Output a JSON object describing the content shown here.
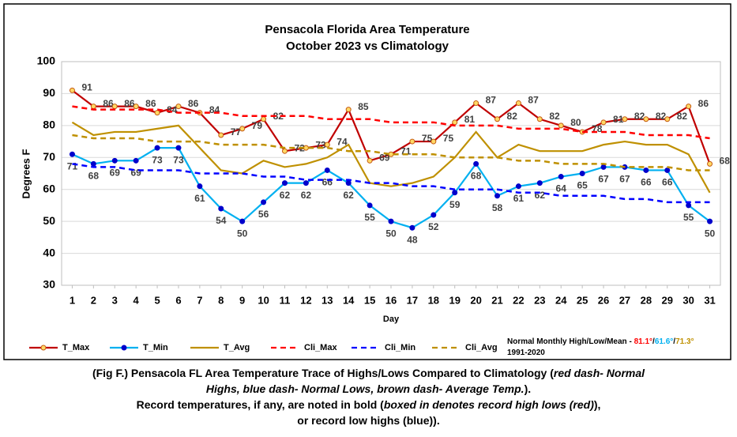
{
  "chart_data": {
    "type": "line",
    "title": [
      "Pensacola Florida Area Temperature",
      "October 2023 vs Climatology"
    ],
    "ylabel": "Degrees F",
    "xlabel": "Day",
    "x": [
      1,
      2,
      3,
      4,
      5,
      6,
      7,
      8,
      9,
      10,
      11,
      12,
      13,
      14,
      15,
      16,
      17,
      18,
      19,
      20,
      21,
      22,
      23,
      24,
      25,
      26,
      27,
      28,
      29,
      30,
      31
    ],
    "xlim": [
      0.5,
      31.5
    ],
    "xticks": [
      1,
      2,
      3,
      4,
      5,
      6,
      7,
      8,
      9,
      10,
      11,
      12,
      13,
      14,
      15,
      16,
      17,
      18,
      19,
      20,
      21,
      22,
      23,
      24,
      25,
      26,
      27,
      28,
      29,
      30,
      31
    ],
    "ylim": [
      30,
      100
    ],
    "yticks": [
      30,
      40,
      50,
      60,
      70,
      80,
      90,
      100
    ],
    "grid": true,
    "legend": "bottom",
    "series": [
      {
        "name": "T_Max",
        "color": "#c00000",
        "dash": false,
        "marker_color": "#ffd966",
        "marker_edge": "#c55a11",
        "labels": "above",
        "values": [
          91,
          86,
          86,
          86,
          84,
          86,
          84,
          77,
          79,
          82,
          72,
          73,
          74,
          85,
          69,
          71,
          75,
          75,
          81,
          87,
          82,
          87,
          82,
          80,
          78,
          81,
          82,
          82,
          82,
          86,
          68
        ]
      },
      {
        "name": "T_Min",
        "color": "#00b0f0",
        "dash": false,
        "marker_color": "#0000cc",
        "marker_edge": "#0000cc",
        "labels": "below",
        "values": [
          71,
          68,
          69,
          69,
          73,
          73,
          61,
          54,
          50,
          56,
          62,
          62,
          66,
          62,
          55,
          50,
          48,
          52,
          59,
          68,
          58,
          61,
          62,
          64,
          65,
          67,
          67,
          66,
          66,
          55,
          50
        ]
      },
      {
        "name": "T_Avg",
        "color": "#bf9000",
        "dash": false,
        "values": [
          81,
          77,
          78,
          78,
          79,
          80,
          73,
          66,
          65,
          69,
          67,
          68,
          70,
          74,
          62,
          61,
          62,
          64,
          70,
          78,
          70,
          74,
          72,
          72,
          72,
          74,
          75,
          74,
          74,
          71,
          59
        ]
      },
      {
        "name": "Cli_Max",
        "color": "#ff0000",
        "dash": true,
        "values": [
          86,
          85,
          85,
          85,
          85,
          84,
          84,
          84,
          83,
          83,
          83,
          83,
          82,
          82,
          82,
          81,
          81,
          81,
          80,
          80,
          80,
          79,
          79,
          79,
          78,
          78,
          78,
          77,
          77,
          77,
          76
        ]
      },
      {
        "name": "Cli_Min",
        "color": "#0000ff",
        "dash": true,
        "values": [
          68,
          67,
          67,
          66,
          66,
          66,
          65,
          65,
          65,
          64,
          64,
          63,
          63,
          63,
          62,
          62,
          61,
          61,
          60,
          60,
          60,
          59,
          59,
          58,
          58,
          58,
          57,
          57,
          56,
          56,
          56
        ]
      },
      {
        "name": "Cli_Avg",
        "color": "#bf9000",
        "dash": true,
        "values": [
          77,
          76,
          76,
          76,
          75,
          75,
          75,
          74,
          74,
          74,
          73,
          73,
          73,
          72,
          72,
          71,
          71,
          71,
          70,
          70,
          70,
          69,
          69,
          68,
          68,
          68,
          67,
          67,
          67,
          66,
          66
        ]
      }
    ],
    "note": [
      [
        {
          "text": "Normal Monthly High/Low/Mean - ",
          "color": "#000000"
        },
        {
          "text": "81.1°",
          "color": "#ff0000"
        },
        {
          "text": "/",
          "color": "#000000"
        },
        {
          "text": "61.6°",
          "color": "#00b0f0"
        },
        {
          "text": "/",
          "color": "#000000"
        },
        {
          "text": "71.3°",
          "color": "#bf9000"
        }
      ],
      [
        {
          "text": "1991-2020",
          "color": "#000000"
        }
      ]
    ]
  },
  "caption": [
    [
      {
        "text": "(Fig F.) Pensacola FL Area Temperature Trace of Highs/Lows Compared to Climatology (",
        "italic": false
      },
      {
        "text": "red dash- Normal",
        "italic": true
      }
    ],
    [
      {
        "text": "Highs, blue dash- Normal Lows, brown dash- Average Temp.",
        "italic": true
      },
      {
        "text": ").",
        "italic": false
      }
    ],
    [
      {
        "text": "Record temperatures, if any, are noted in bold (",
        "italic": false
      },
      {
        "text": "boxed in denotes record high lows (red)",
        "italic": true
      },
      {
        "text": "),",
        "italic": false
      }
    ],
    [
      {
        "text": "or record low highs (blue)).",
        "italic": false
      }
    ]
  ]
}
